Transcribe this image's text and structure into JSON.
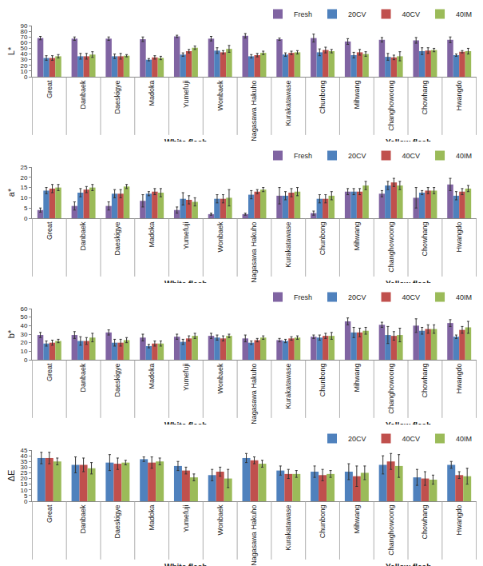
{
  "chart_data": [
    {
      "type": "bar",
      "y_label": "L*",
      "categories": [
        "Great",
        "Danbaek",
        "Daeskigye",
        "Madoka",
        "Yumefuji",
        "Wonbaek",
        "Nagasawa Hakuho",
        "Kurakatawase",
        "Chunbong",
        "Mihwang",
        "Changhowoong",
        "Chowhang",
        "Hwangdo"
      ],
      "series": [
        {
          "name": "Fresh",
          "color": "#8064A2",
          "values": [
            68,
            67,
            67,
            66,
            71,
            67,
            72,
            66,
            68,
            62,
            65,
            64,
            65
          ],
          "errors": [
            3,
            3,
            3,
            4,
            2,
            4,
            4,
            2,
            7,
            5,
            4,
            5,
            5
          ]
        },
        {
          "name": "20CV",
          "color": "#4F81BD",
          "values": [
            33,
            36,
            36,
            30,
            39,
            46,
            36,
            39,
            43,
            38,
            35,
            45,
            38
          ],
          "errors": [
            4,
            5,
            4,
            2,
            3,
            5,
            3,
            3,
            6,
            5,
            6,
            6,
            2
          ]
        },
        {
          "name": "40CV",
          "color": "#C0504D",
          "values": [
            33,
            36,
            36,
            34,
            45,
            43,
            38,
            42,
            47,
            43,
            34,
            46,
            44
          ],
          "errors": [
            4,
            5,
            5,
            3,
            3,
            3,
            3,
            3,
            5,
            5,
            4,
            5,
            2
          ]
        },
        {
          "name": "40IM",
          "color": "#9BBB59",
          "values": [
            36,
            39,
            37,
            33,
            51,
            49,
            42,
            43,
            45,
            40,
            36,
            47,
            45
          ],
          "errors": [
            3,
            5,
            2,
            3,
            3,
            6,
            3,
            3,
            3,
            4,
            8,
            3,
            5
          ]
        }
      ],
      "ylim": [
        0,
        90
      ],
      "yticks": [
        0,
        10,
        20,
        30,
        40,
        50,
        60,
        70,
        80,
        90
      ],
      "grid": false,
      "legend": "top right",
      "annotations": [
        {
          "text": "White flesh",
          "categories": [
            "Great",
            "Danbaek",
            "Daeskigye",
            "Madoka",
            "Yumefuji",
            "Wonbaek",
            "Nagasawa Hakuho",
            "Kurakatawase",
            "Chunbong"
          ]
        },
        {
          "text": "Yellow flesh",
          "categories": [
            "Mihwang",
            "Changhowoong",
            "Chowhang",
            "Hwangdo"
          ]
        }
      ]
    },
    {
      "type": "bar",
      "y_label": "a*",
      "categories": [
        "Great",
        "Danbaek",
        "Daeskigye",
        "Madoka",
        "Yumefuji",
        "Wonbaek",
        "Nagasawa Hakuho",
        "Kurakatawase",
        "Chunbong",
        "Mihwang",
        "Changhowoong",
        "Chowhang",
        "Hwangdo"
      ],
      "series": [
        {
          "name": "Fresh",
          "color": "#8064A2",
          "values": [
            4,
            6,
            6,
            8.5,
            4,
            2,
            2,
            11,
            2.5,
            13,
            12,
            10,
            16.5
          ],
          "errors": [
            1,
            2,
            2,
            3,
            1.5,
            0.5,
            0.5,
            4,
            1,
            1.5,
            1.5,
            5,
            3
          ]
        },
        {
          "name": "20CV",
          "color": "#4F81BD",
          "values": [
            13.5,
            12.5,
            12,
            12,
            9.5,
            9.5,
            11.5,
            11,
            9.5,
            13,
            16,
            12.5,
            11
          ],
          "errors": [
            1.5,
            2,
            2,
            1,
            3,
            2,
            2,
            2,
            2,
            1.5,
            2,
            1,
            2
          ]
        },
        {
          "name": "40CV",
          "color": "#C0504D",
          "values": [
            14.5,
            14,
            12,
            13,
            9,
            9.5,
            13,
            12.5,
            9.5,
            13,
            17.5,
            13.5,
            13
          ],
          "errors": [
            2,
            1.5,
            2,
            1.5,
            2,
            2,
            1,
            2,
            2,
            1.5,
            2,
            1.5,
            1.5
          ]
        },
        {
          "name": "40IM",
          "color": "#9BBB59",
          "values": [
            15,
            15,
            15.5,
            12.5,
            8,
            10,
            14,
            13,
            11,
            16,
            16,
            13.5,
            14.5
          ],
          "errors": [
            1.5,
            1.5,
            1,
            2,
            2,
            4,
            1,
            2,
            2,
            2,
            2,
            1.5,
            1.5
          ]
        }
      ],
      "ylim": [
        0,
        25
      ],
      "yticks": [
        0,
        5,
        10,
        15,
        20,
        25
      ],
      "grid": false,
      "legend": "top right",
      "annotations": [
        {
          "text": "White flesh",
          "categories": [
            "Great",
            "Danbaek",
            "Daeskigye",
            "Madoka",
            "Yumefuji",
            "Wonbaek",
            "Nagasawa Hakuho",
            "Kurakatawase",
            "Chunbong"
          ]
        },
        {
          "text": "Yellow flesh",
          "categories": [
            "Mihwang",
            "Changhowoong",
            "Chowhang",
            "Hwangdo"
          ]
        }
      ]
    },
    {
      "type": "bar",
      "y_label": "b*",
      "categories": [
        "Great",
        "Danbaek",
        "Daeskigye",
        "Madoka",
        "Yumefuji",
        "Wonbaek",
        "Nagasawa Hakuho",
        "Kurakatawase",
        "Chunbong",
        "Mihwang",
        "Changhowoong",
        "Chowhang",
        "Hwangdo"
      ],
      "series": [
        {
          "name": "Fresh",
          "color": "#8064A2",
          "values": [
            29,
            29,
            32,
            26,
            27,
            28,
            25,
            23,
            27,
            45,
            41,
            40,
            43
          ],
          "errors": [
            3,
            4,
            3,
            4,
            3,
            3,
            4,
            2,
            2,
            4,
            3,
            8,
            4
          ]
        },
        {
          "name": "20CV",
          "color": "#4F81BD",
          "values": [
            19,
            22,
            20,
            16,
            21,
            26,
            20,
            22,
            26,
            32,
            29,
            34,
            27
          ],
          "errors": [
            3,
            5,
            4,
            2,
            3,
            3,
            2,
            2,
            3,
            6,
            10,
            4,
            2
          ]
        },
        {
          "name": "40CV",
          "color": "#C0504D",
          "values": [
            20,
            22,
            20,
            19,
            25,
            25,
            23,
            25,
            28,
            32,
            28,
            36,
            35
          ],
          "errors": [
            3,
            4,
            4,
            3,
            3,
            3,
            2,
            2,
            3,
            5,
            5,
            5,
            4
          ]
        },
        {
          "name": "40IM",
          "color": "#9BBB59",
          "values": [
            22,
            26,
            23,
            19,
            28,
            28,
            26,
            26,
            28,
            34,
            29,
            36,
            38
          ],
          "errors": [
            2,
            5,
            3,
            3,
            3,
            2,
            2,
            2,
            4,
            4,
            8,
            5,
            7
          ]
        }
      ],
      "ylim": [
        0,
        60
      ],
      "yticks": [
        0,
        10,
        20,
        30,
        40,
        50,
        60
      ],
      "grid": false,
      "legend": "top right",
      "annotations": [
        {
          "text": "White flesh",
          "categories": [
            "Great",
            "Danbaek",
            "Daeskigye",
            "Madoka",
            "Yumefuji",
            "Wonbaek",
            "Nagasawa Hakuho",
            "Kurakatawase",
            "Chunbong"
          ]
        },
        {
          "text": "Yellow flesh",
          "categories": [
            "Mihwang",
            "Changhowoong",
            "Chowhang",
            "Hwangdo"
          ]
        }
      ]
    },
    {
      "type": "bar",
      "y_label": "ΔE",
      "categories": [
        "Great",
        "Danbaek",
        "Daeskigye",
        "Madoka",
        "Yumefuji",
        "Wonbaek",
        "Nagasawa Hakuho",
        "Kurakatawase",
        "Chunbong",
        "Mihwang",
        "Changhowoong",
        "Chowhang",
        "Hwangdo"
      ],
      "series": [
        {
          "name": "20CV",
          "color": "#4F81BD",
          "values": [
            38,
            32,
            34,
            37,
            31,
            23,
            38,
            27,
            26,
            26,
            32,
            21,
            32
          ],
          "errors": [
            5,
            7,
            7,
            2,
            4,
            5,
            4,
            4,
            5,
            7,
            8,
            7,
            3
          ]
        },
        {
          "name": "40CV",
          "color": "#C0504D",
          "values": [
            38,
            32,
            33,
            34,
            27,
            26,
            36,
            24,
            23,
            22,
            35,
            20,
            23
          ],
          "errors": [
            5,
            6,
            5,
            5,
            3,
            4,
            3,
            4,
            5,
            9,
            7,
            6,
            3
          ]
        },
        {
          "name": "40IM",
          "color": "#9BBB59",
          "values": [
            35,
            29,
            34,
            35,
            21,
            20,
            33,
            24,
            24,
            25,
            31,
            19,
            22
          ],
          "errors": [
            3,
            5,
            2,
            3,
            3,
            8,
            3,
            3,
            3,
            6,
            10,
            4,
            7
          ]
        }
      ],
      "ylim": [
        0,
        45
      ],
      "yticks": [
        0,
        5,
        10,
        15,
        20,
        25,
        30,
        35,
        40,
        45
      ],
      "grid": false,
      "legend": "top right",
      "annotations": [
        {
          "text": "White flesh",
          "categories": [
            "Great",
            "Danbaek",
            "Daeskigye",
            "Madoka",
            "Yumefuji",
            "Wonbaek",
            "Nagasawa Hakuho",
            "Kurakatawase",
            "Chunbong"
          ]
        },
        {
          "text": "Yellow flesh",
          "categories": [
            "Mihwang",
            "Changhowoong",
            "Chowhang",
            "Hwangdo"
          ]
        }
      ]
    }
  ]
}
